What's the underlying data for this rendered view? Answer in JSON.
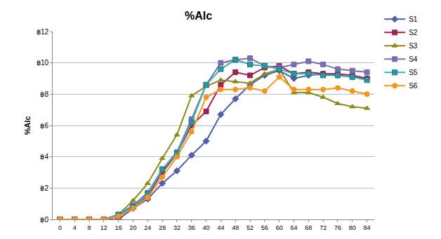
{
  "chart_data": {
    "type": "line",
    "title": "%Alc",
    "y_label": "%Alc",
    "categories": [
      "0",
      "4",
      "8",
      "12",
      "16",
      "20",
      "24",
      "28",
      "32",
      "36",
      "40",
      "44",
      "48",
      "52",
      "56",
      "60",
      "64",
      "68",
      "72",
      "76",
      "80",
      "84"
    ],
    "series": [
      {
        "name": "S1",
        "color": "#4F5FA8",
        "marker": "diamond",
        "values": [
          0,
          0,
          0,
          0,
          0,
          0.7,
          1.3,
          2.3,
          3.1,
          4.1,
          5.0,
          6.7,
          7.7,
          8.6,
          9.2,
          9.5,
          9.0,
          9.2,
          9.3,
          9.2,
          9.1,
          9.0
        ]
      },
      {
        "name": "S2",
        "color": "#A0224F",
        "marker": "square",
        "values": [
          0,
          0,
          0,
          0,
          0.2,
          0.8,
          1.5,
          3.0,
          4.2,
          6.0,
          6.9,
          8.6,
          9.4,
          9.2,
          9.7,
          9.8,
          9.3,
          9.4,
          9.3,
          9.3,
          9.2,
          9.0
        ]
      },
      {
        "name": "S3",
        "color": "#8B8B1A",
        "marker": "triangle-up",
        "values": [
          0,
          0,
          0,
          0,
          0.3,
          1.2,
          2.3,
          3.9,
          5.4,
          7.9,
          8.5,
          8.9,
          8.8,
          8.7,
          9.3,
          9.6,
          8.1,
          8.1,
          7.8,
          7.4,
          7.2,
          7.1
        ]
      },
      {
        "name": "S4",
        "color": "#7B6BB0",
        "marker": "square",
        "values": [
          0,
          0,
          0,
          0,
          0.3,
          0.9,
          1.7,
          3.2,
          4.3,
          6.4,
          8.6,
          10.0,
          10.2,
          10.3,
          9.8,
          9.7,
          9.9,
          10.1,
          9.9,
          9.6,
          9.5,
          9.4
        ]
      },
      {
        "name": "S5",
        "color": "#33B0B8",
        "marker": "square-x",
        "values": [
          0,
          0,
          0,
          0,
          0.3,
          0.8,
          1.6,
          3.2,
          4.2,
          6.2,
          8.6,
          9.6,
          10.2,
          9.9,
          9.8,
          9.6,
          9.3,
          9.3,
          9.2,
          9.2,
          9.1,
          8.9
        ]
      },
      {
        "name": "S6",
        "color": "#F7941D",
        "marker": "circle",
        "values": [
          0,
          0,
          0,
          0,
          0.2,
          0.7,
          1.4,
          2.7,
          4.0,
          5.6,
          7.8,
          8.3,
          8.3,
          8.4,
          8.2,
          9.1,
          8.3,
          8.3,
          8.3,
          8.4,
          8.2,
          8.0
        ]
      }
    ],
    "ylim": [
      0,
      12
    ],
    "yticks": [
      {
        "value": 0,
        "label": "฿0"
      },
      {
        "value": 2,
        "label": "฿2"
      },
      {
        "value": 4,
        "label": "฿4"
      },
      {
        "value": 6,
        "label": "฿6"
      },
      {
        "value": 8,
        "label": "฿8"
      },
      {
        "value": 10,
        "label": "฿10"
      },
      {
        "value": 12,
        "label": "฿12"
      }
    ],
    "grid": true,
    "legend": "right"
  }
}
